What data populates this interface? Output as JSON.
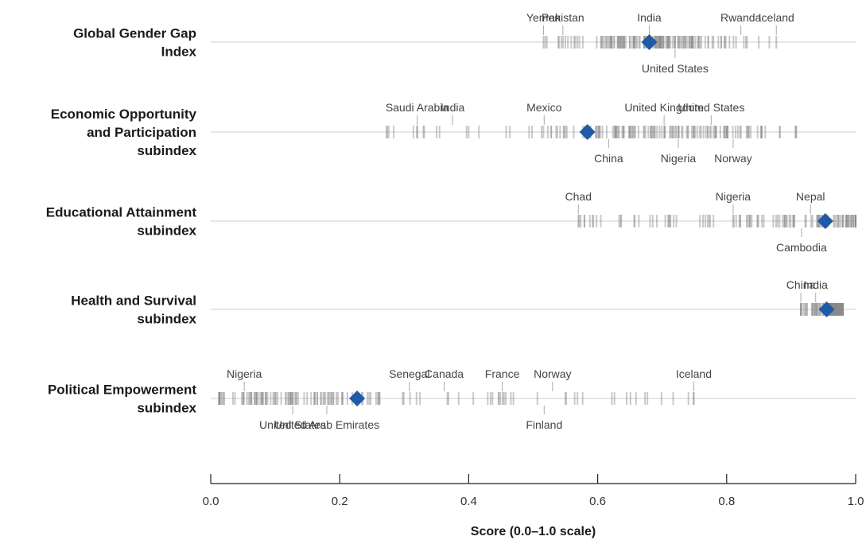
{
  "chart_data": {
    "type": "strip",
    "xlabel": "Score (0.0–1.0 scale)",
    "xlim": [
      0.0,
      1.0
    ],
    "x_ticks": [
      "0.0",
      "0.2",
      "0.4",
      "0.6",
      "0.8",
      "1.0"
    ],
    "colors": {
      "average_marker": "#1f5aa6",
      "country_tick": "#8a8a8a",
      "baseline": "#cccccc",
      "label": "#444444"
    },
    "rows": [
      {
        "label_lines": [
          "Global Gender Gap",
          "Index"
        ],
        "average": 0.68,
        "annotations": [
          {
            "name": "Yemen",
            "value": 0.516,
            "side": "above"
          },
          {
            "name": "Pakistan",
            "value": 0.546,
            "side": "above"
          },
          {
            "name": "India",
            "value": 0.68,
            "side": "above"
          },
          {
            "name": "Rwanda",
            "value": 0.822,
            "side": "above"
          },
          {
            "name": "Iceland",
            "value": 0.877,
            "side": "above"
          },
          {
            "name": "United States",
            "value": 0.72,
            "side": "below"
          }
        ],
        "distribution": {
          "min": 0.516,
          "max": 0.877,
          "count": 149,
          "peak": 0.7
        }
      },
      {
        "label_lines": [
          "Economic Opportunity",
          "and Participation",
          "subindex"
        ],
        "average": 0.584,
        "annotations": [
          {
            "name": "Saudi Arabia",
            "value": 0.32,
            "side": "above"
          },
          {
            "name": "India",
            "value": 0.375,
            "side": "above"
          },
          {
            "name": "Mexico",
            "value": 0.517,
            "side": "above"
          },
          {
            "name": "United Kingdom",
            "value": 0.703,
            "side": "above"
          },
          {
            "name": "United States",
            "value": 0.776,
            "side": "above"
          },
          {
            "name": "China",
            "value": 0.617,
            "side": "below"
          },
          {
            "name": "Nigeria",
            "value": 0.725,
            "side": "below"
          },
          {
            "name": "Norway",
            "value": 0.81,
            "side": "below"
          }
        ],
        "distribution": {
          "min": 0.273,
          "max": 0.908,
          "count": 149,
          "peak": 0.68
        }
      },
      {
        "label_lines": [
          "Educational Attainment",
          "subindex"
        ],
        "average": 0.953,
        "annotations": [
          {
            "name": "Chad",
            "value": 0.57,
            "side": "above"
          },
          {
            "name": "Nigeria",
            "value": 0.81,
            "side": "above"
          },
          {
            "name": "Nepal",
            "value": 0.93,
            "side": "above"
          },
          {
            "name": "Cambodia",
            "value": 0.916,
            "side": "below"
          }
        ],
        "distribution": {
          "min": 0.57,
          "max": 1.0,
          "count": 149,
          "peak": 1.0
        }
      },
      {
        "label_lines": [
          "Health and Survival",
          "subindex"
        ],
        "average": 0.955,
        "annotations": [
          {
            "name": "China",
            "value": 0.915,
            "side": "above"
          },
          {
            "name": "India",
            "value": 0.938,
            "side": "above"
          }
        ],
        "distribution": {
          "min": 0.915,
          "max": 0.98,
          "count": 149,
          "peak": 0.97
        }
      },
      {
        "label_lines": [
          "Political Empowerment",
          "subindex"
        ],
        "average": 0.227,
        "annotations": [
          {
            "name": "Nigeria",
            "value": 0.052,
            "side": "above"
          },
          {
            "name": "Senegal",
            "value": 0.308,
            "side": "above"
          },
          {
            "name": "Canada",
            "value": 0.362,
            "side": "above"
          },
          {
            "name": "France",
            "value": 0.452,
            "side": "above"
          },
          {
            "name": "Norway",
            "value": 0.53,
            "side": "above"
          },
          {
            "name": "Iceland",
            "value": 0.749,
            "side": "above"
          },
          {
            "name": "United States",
            "value": 0.127,
            "side": "below"
          },
          {
            "name": "United Arab Emirates",
            "value": 0.18,
            "side": "below"
          },
          {
            "name": "Finland",
            "value": 0.517,
            "side": "below"
          }
        ],
        "distribution": {
          "min": 0.013,
          "max": 0.749,
          "count": 149,
          "peak": 0.1
        }
      }
    ]
  }
}
